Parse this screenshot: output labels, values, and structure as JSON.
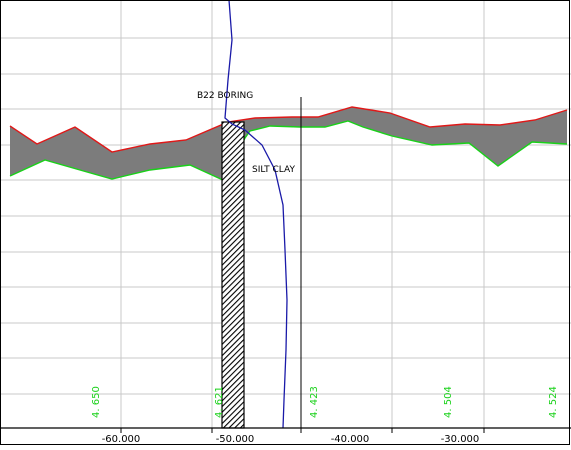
{
  "colors": {
    "background": "#ffffff",
    "grid": "#c8c8c8",
    "frame": "#000000",
    "top_line": "#e01818",
    "bottom_line": "#19d119",
    "fill": "#7c7c7c",
    "boring_line": "#1a1aa8",
    "station_labels": "#19d119"
  },
  "labels": {
    "boring": "B22  BORING",
    "soil": "SILT  CLAY"
  },
  "x_ticks": [
    "-60.000",
    "-50.000",
    "-40.000",
    "-30.000"
  ],
  "station_values": [
    "4. 650",
    "4. 621",
    "4. 423",
    "4. 504",
    "4. 524"
  ]
}
